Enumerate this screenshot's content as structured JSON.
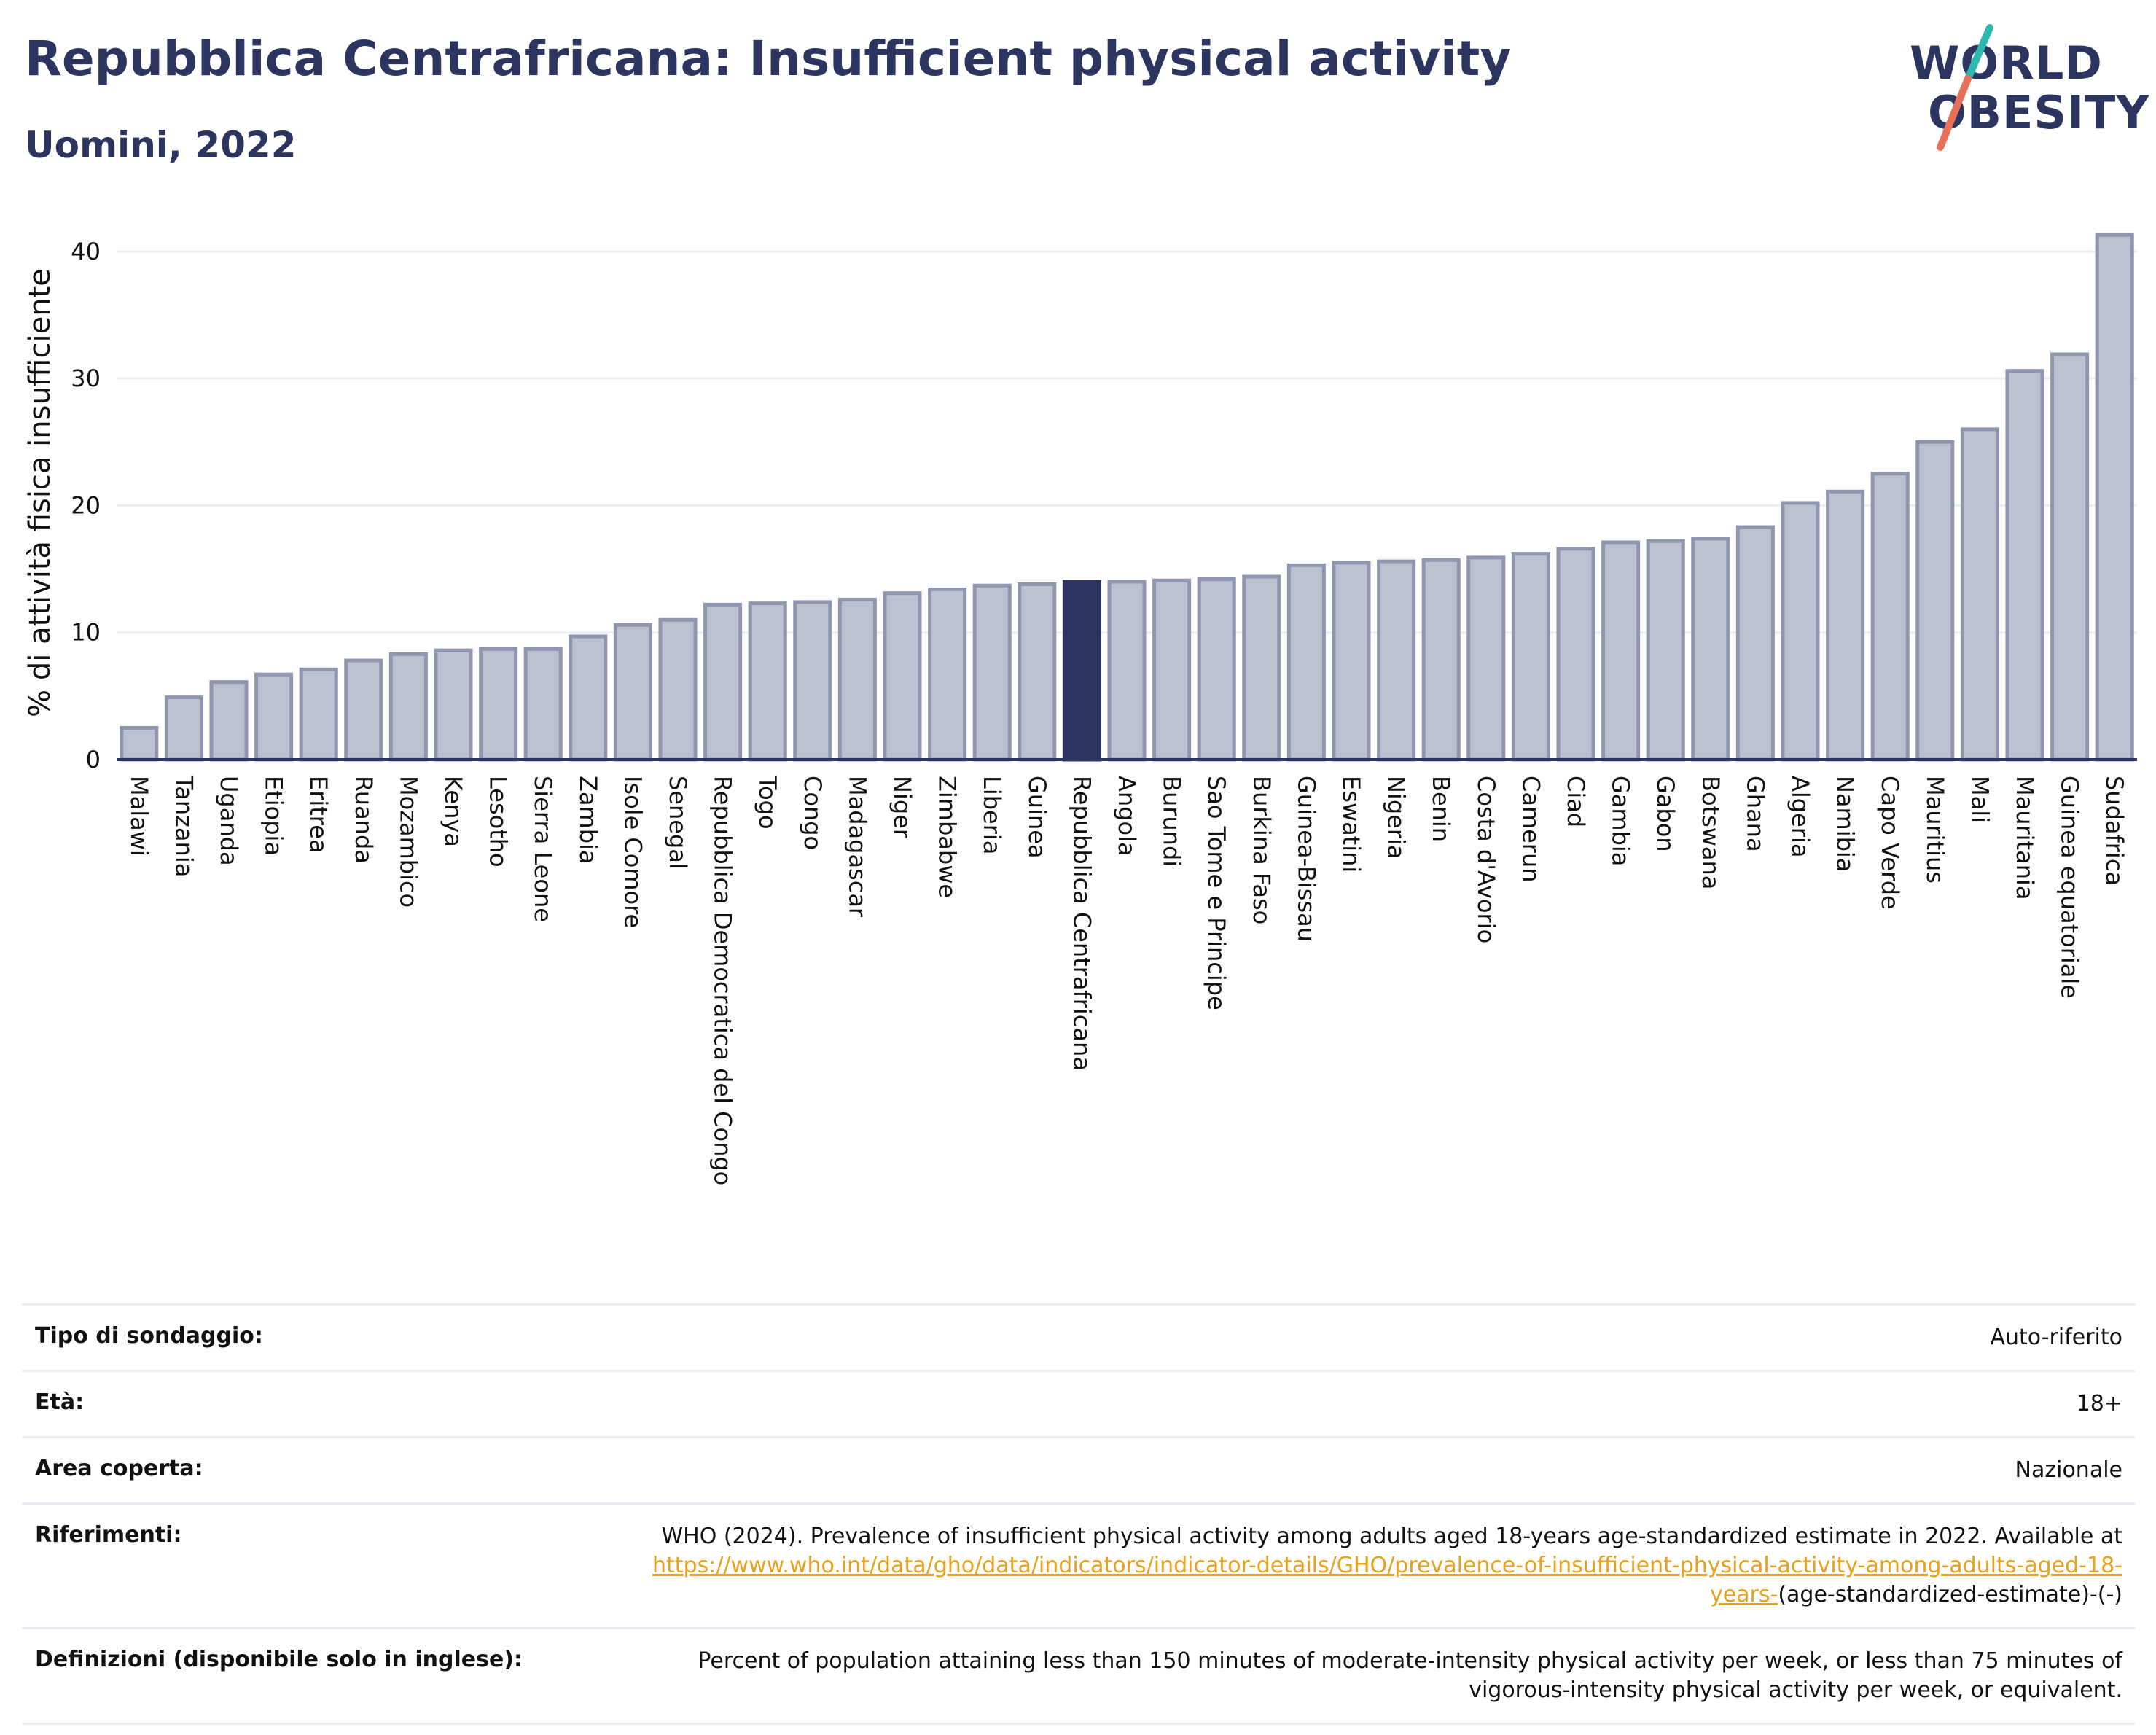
{
  "header": {
    "title": "Repubblica Centrafricana: Insufficient physical activity",
    "subtitle": "Uomini, 2022"
  },
  "logo": {
    "text_line1": "WORLD",
    "text_line2": "OBESITY",
    "colors": {
      "text": "#2b3560",
      "slash_top": "#2fb8b0",
      "slash_bottom": "#e8705a"
    }
  },
  "colors": {
    "bar_fill": "#bcc1d0",
    "bar_stroke": "#8f96b0",
    "highlight": "#2b3560",
    "axis": "#2b3560",
    "grid": "#eceef4",
    "link": "#e8a21a"
  },
  "chart_data": {
    "type": "bar",
    "ylabel": "% di attività fisica insufficiente",
    "ylim": [
      0,
      42
    ],
    "yticks": [
      0,
      10,
      20,
      30,
      40
    ],
    "grid": true,
    "highlight": "Repubblica Centrafricana",
    "categories": [
      "Malawi",
      "Tanzania",
      "Uganda",
      "Etiopia",
      "Eritrea",
      "Ruanda",
      "Mozambico",
      "Kenya",
      "Lesotho",
      "Sierra Leone",
      "Zambia",
      "Isole Comore",
      "Senegal",
      "Repubblica Democratica del Congo",
      "Togo",
      "Congo",
      "Madagascar",
      "Niger",
      "Zimbabwe",
      "Liberia",
      "Guinea",
      "Repubblica Centrafricana",
      "Angola",
      "Burundi",
      "Sao Tome e Principe",
      "Burkina Faso",
      "Guinea-Bissau",
      "Eswatini",
      "Nigeria",
      "Benin",
      "Costa d'Avorio",
      "Camerun",
      "Ciad",
      "Gambia",
      "Gabon",
      "Botswana",
      "Ghana",
      "Algeria",
      "Namibia",
      "Capo Verde",
      "Mauritius",
      "Mali",
      "Mauritania",
      "Guinea equatoriale",
      "Sudafrica"
    ],
    "values": [
      2.5,
      4.9,
      6.1,
      6.7,
      7.1,
      7.8,
      8.3,
      8.6,
      8.7,
      8.7,
      9.7,
      10.6,
      11.0,
      12.2,
      12.3,
      12.4,
      12.6,
      13.1,
      13.4,
      13.7,
      13.8,
      14.0,
      14.0,
      14.1,
      14.2,
      14.4,
      15.3,
      15.5,
      15.6,
      15.7,
      15.9,
      16.2,
      16.6,
      17.1,
      17.2,
      17.4,
      18.3,
      20.2,
      21.1,
      22.5,
      25.0,
      26.0,
      30.6,
      31.9,
      41.3
    ]
  },
  "info": {
    "survey_type_label": "Tipo di sondaggio:",
    "survey_type_value": "Auto-riferito",
    "age_label": "Età:",
    "age_value": "18+",
    "area_label": "Area coperta:",
    "area_value": "Nazionale",
    "references_label": "Riferimenti:",
    "references_text": "WHO (2024). Prevalence of insufficient physical activity among adults aged 18-years age-standardized estimate in 2022. Available at ",
    "references_link": "https://www.who.int/data/gho/data/indicators/indicator-details/GHO/prevalence-of-insufficient-physical-activity-among-adults-aged-18-years-",
    "references_suffix": "(age-standardized-estimate)-(-)",
    "definitions_label": "Definizioni (disponibile solo in inglese):",
    "definitions_value": "Percent of population attaining less than 150 minutes of moderate-intensity physical activity per week, or less than 75 minutes of vigorous-intensity physical activity per week, or equivalent."
  }
}
